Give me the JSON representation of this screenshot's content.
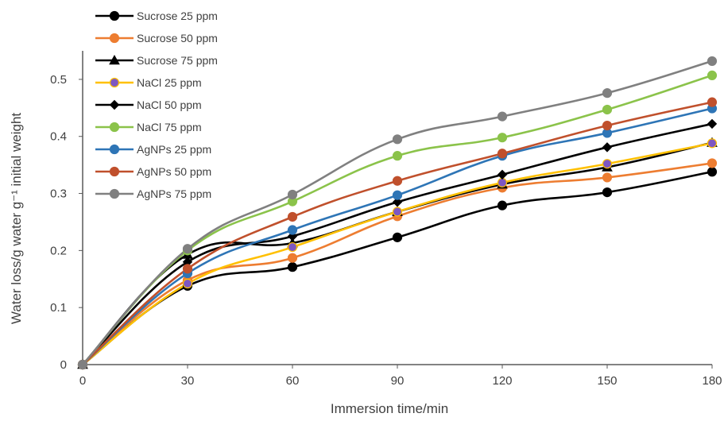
{
  "chart_data": {
    "type": "line",
    "xlabel": "Immersion time/min",
    "ylabel": "Water loss/g water g⁻¹ initial weight",
    "x": [
      0,
      30,
      60,
      90,
      120,
      150,
      180
    ],
    "xlim": [
      0,
      180
    ],
    "ylim": [
      0,
      0.55
    ],
    "yticks": [
      0,
      0.1,
      0.2,
      0.3,
      0.4,
      0.5
    ],
    "ytick_labels": [
      "0",
      "0.1",
      "0.2",
      "0.3",
      "0.4",
      "0.5"
    ],
    "xtick_labels": [
      "0",
      "30",
      "60",
      "90",
      "120",
      "150",
      "180"
    ],
    "grid": false,
    "legend_position": "top-left",
    "series": [
      {
        "name": "Sucrose 25 ppm",
        "color": "#000000",
        "marker": "circle",
        "values": [
          0,
          0.138,
          0.171,
          0.223,
          0.279,
          0.302,
          0.338
        ]
      },
      {
        "name": "Sucrose 50 ppm",
        "color": "#ED7D31",
        "marker": "circle",
        "values": [
          0,
          0.148,
          0.187,
          0.26,
          0.31,
          0.328,
          0.353
        ]
      },
      {
        "name": "Sucrose 75 ppm",
        "color": "#000000",
        "marker": "triangle",
        "values": [
          0,
          0.193,
          0.213,
          0.268,
          0.316,
          0.346,
          0.389
        ]
      },
      {
        "name": "NaCl 25 ppm",
        "color": "#FFC000",
        "marker": "circle",
        "marker_fill": "#7E57C2",
        "values": [
          0,
          0.142,
          0.206,
          0.268,
          0.319,
          0.352,
          0.388
        ]
      },
      {
        "name": "NaCl 50 ppm",
        "color": "#000000",
        "marker": "diamond",
        "values": [
          0,
          0.18,
          0.225,
          0.285,
          0.333,
          0.381,
          0.422
        ]
      },
      {
        "name": "NaCl 75 ppm",
        "color": "#8BC34A",
        "marker": "circle",
        "values": [
          0,
          0.2,
          0.286,
          0.366,
          0.398,
          0.447,
          0.507
        ]
      },
      {
        "name": "AgNPs 25 ppm",
        "color": "#2E75B6",
        "marker": "circle",
        "values": [
          0,
          0.16,
          0.236,
          0.297,
          0.366,
          0.406,
          0.449
        ]
      },
      {
        "name": "AgNPs 50 ppm",
        "color": "#C0502C",
        "marker": "circle",
        "values": [
          0,
          0.168,
          0.259,
          0.322,
          0.37,
          0.419,
          0.46
        ]
      },
      {
        "name": "AgNPs 75 ppm",
        "color": "#808080",
        "marker": "circle",
        "values": [
          0,
          0.203,
          0.298,
          0.395,
          0.435,
          0.476,
          0.532
        ]
      }
    ]
  }
}
